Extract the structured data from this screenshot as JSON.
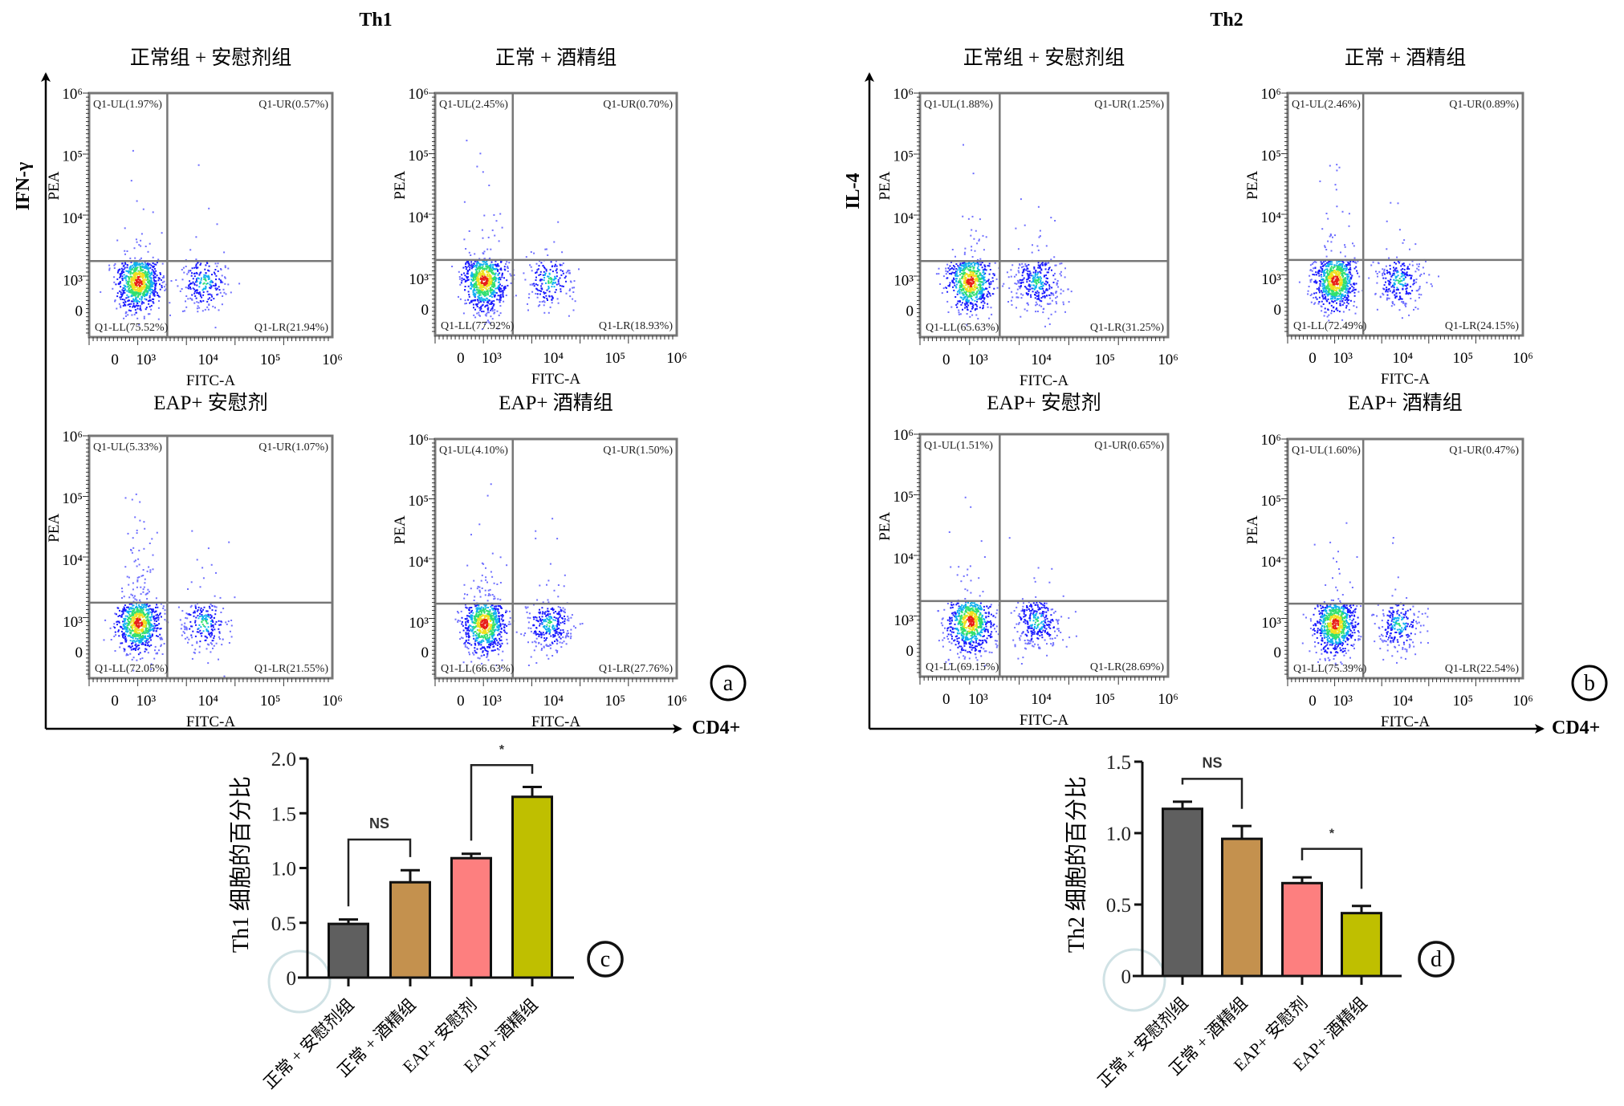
{
  "chart_data": [
    {
      "type": "scatter",
      "subtype": "flow-cytometry-quadrant",
      "panel_title": "Th1",
      "ylabel": "IFN-γ",
      "xlabel": "CD4+",
      "badge": "a",
      "log_scale": true,
      "x_ticks": [
        "0",
        "10³",
        "10⁴",
        "10⁵",
        "10⁶"
      ],
      "y_ticks": [
        "10⁶",
        "10⁵",
        "10⁴",
        "10³",
        "0"
      ],
      "gate": {
        "x": 2200,
        "y": 2000
      },
      "plots": [
        {
          "title": "正常组 + 安慰剂组",
          "xlabel": "FITC-A",
          "ylabel": "PEA",
          "quadrants": [
            "Q1-UL(1.97%)",
            "Q1-UR(0.57%)",
            "Q1-LL(75.52%)",
            "Q1-LR(21.94%)"
          ]
        },
        {
          "title": "正常 + 酒精组",
          "xlabel": "FITC-A",
          "ylabel": "PEA",
          "quadrants": [
            "Q1-UL(2.45%)",
            "Q1-UR(0.70%)",
            "Q1-LL(77.92%)",
            "Q1-LR(18.93%)"
          ]
        },
        {
          "title": "EAP+ 安慰剂",
          "xlabel": "FITC-A",
          "ylabel": "PEA",
          "quadrants": [
            "Q1-UL(5.33%)",
            "Q1-UR(1.07%)",
            "Q1-LL(72.05%)",
            "Q1-LR(21.55%)"
          ]
        },
        {
          "title": "EAP+ 酒精组",
          "xlabel": "FITC-A",
          "ylabel": "PEA",
          "quadrants": [
            "Q1-UL(4.10%)",
            "Q1-UR(1.50%)",
            "Q1-LL(66.63%)",
            "Q1-LR(27.76%)"
          ]
        }
      ]
    },
    {
      "type": "scatter",
      "subtype": "flow-cytometry-quadrant",
      "panel_title": "Th2",
      "ylabel": "IL-4",
      "xlabel": "CD4+",
      "badge": "b",
      "log_scale": true,
      "x_ticks": [
        "0",
        "10³",
        "10⁴",
        "10⁵",
        "10⁶"
      ],
      "y_ticks": [
        "10⁶",
        "10⁵",
        "10⁴",
        "10³",
        "0"
      ],
      "gate": {
        "x": 2200,
        "y": 2000
      },
      "plots": [
        {
          "title": "正常组 + 安慰剂组",
          "xlabel": "FITC-A",
          "ylabel": "PEA",
          "quadrants": [
            "Q1-UL(1.88%)",
            "Q1-UR(1.25%)",
            "Q1-LL(65.63%)",
            "Q1-LR(31.25%)"
          ]
        },
        {
          "title": "正常 + 酒精组",
          "xlabel": "FITC-A",
          "ylabel": "PEA",
          "quadrants": [
            "Q1-UL(2.46%)",
            "Q1-UR(0.89%)",
            "Q1-LL(72.49%)",
            "Q1-LR(24.15%)"
          ]
        },
        {
          "title": "EAP+ 安慰剂",
          "xlabel": "FITC-A",
          "ylabel": "PEA",
          "quadrants": [
            "Q1-UL(1.51%)",
            "Q1-UR(0.65%)",
            "Q1-LL(69.15%)",
            "Q1-LR(28.69%)"
          ]
        },
        {
          "title": "EAP+ 酒精组",
          "xlabel": "FITC-A",
          "ylabel": "PEA",
          "quadrants": [
            "Q1-UL(1.60%)",
            "Q1-UR(0.47%)",
            "Q1-LL(75.39%)",
            "Q1-LR(22.54%)"
          ]
        }
      ]
    },
    {
      "type": "bar",
      "badge": "c",
      "ylabel": "Th1 细胞的百分比",
      "categories": [
        "正常 + 安慰剂组",
        "正常 + 酒精组",
        "EAP+ 安慰剂",
        "EAP+ 酒精组"
      ],
      "values": [
        0.49,
        0.87,
        1.09,
        1.65
      ],
      "errors": [
        0.04,
        0.11,
        0.04,
        0.09
      ],
      "colors": [
        "#5f5f5f",
        "#c4914e",
        "#fd7f7f",
        "#bfbf00"
      ],
      "ylim": [
        0,
        2.0
      ],
      "y_ticks": [
        "0",
        "0.5",
        "1.0",
        "1.5",
        "2.0"
      ],
      "significance": [
        {
          "pair": [
            0,
            1
          ],
          "label": "NS",
          "y": 1.26
        },
        {
          "pair": [
            2,
            3
          ],
          "label": "*",
          "y": 1.94
        }
      ]
    },
    {
      "type": "bar",
      "badge": "d",
      "ylabel": "Th2 细胞的百分比",
      "categories": [
        "正常 + 安慰剂组",
        "正常 + 酒精组",
        "EAP+ 安慰剂",
        "EAP+ 酒精组"
      ],
      "values": [
        1.17,
        0.96,
        0.65,
        0.44
      ],
      "errors": [
        0.05,
        0.09,
        0.04,
        0.05
      ],
      "colors": [
        "#5f5f5f",
        "#c4914e",
        "#fd7f7f",
        "#bfbf00"
      ],
      "ylim": [
        0,
        1.5
      ],
      "y_ticks": [
        "0",
        "0.5",
        "1.0",
        "1.5"
      ],
      "significance": [
        {
          "pair": [
            0,
            1
          ],
          "label": "NS",
          "y": 1.38
        },
        {
          "pair": [
            2,
            3
          ],
          "label": "*",
          "y": 0.89
        }
      ]
    }
  ]
}
